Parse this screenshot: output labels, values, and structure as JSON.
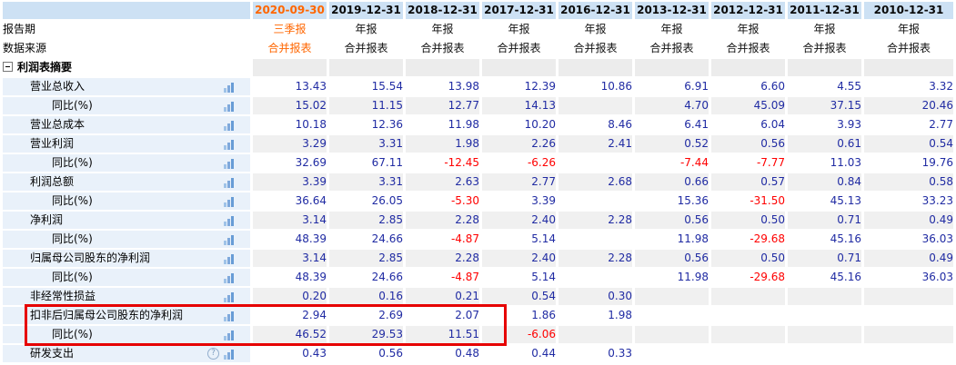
{
  "table": {
    "corner": {
      "report_period_label": "报告期",
      "data_source_label": "数据来源"
    },
    "section": {
      "label": "利润表摘要",
      "collapse_icon": "minus-box"
    },
    "icons": {
      "help_glyph": "?",
      "bar_chart_icon": "bar-chart-icon",
      "help_icon": "help-icon",
      "collapse_icon": "collapse-icon"
    },
    "columns": [
      {
        "date": "2020-09-30",
        "period": "三季报",
        "source": "合并报表",
        "highlight": true
      },
      {
        "date": "2019-12-31",
        "period": "年报",
        "source": "合并报表",
        "highlight": false
      },
      {
        "date": "2018-12-31",
        "period": "年报",
        "source": "合并报表",
        "highlight": false
      },
      {
        "date": "2017-12-31",
        "period": "年报",
        "source": "合并报表",
        "highlight": false
      },
      {
        "date": "2016-12-31",
        "period": "年报",
        "source": "合并报表",
        "highlight": false
      },
      {
        "date": "2013-12-31",
        "period": "年报",
        "source": "合并报表",
        "highlight": false
      },
      {
        "date": "2012-12-31",
        "period": "年报",
        "source": "合并报表",
        "highlight": false
      },
      {
        "date": "2011-12-31",
        "period": "年报",
        "source": "合并报表",
        "highlight": false
      },
      {
        "date": "2010-12-31",
        "period": "年报",
        "source": "合并报表",
        "highlight": false
      }
    ],
    "rows": [
      {
        "label": "营业总收入",
        "indent": 1,
        "help": false,
        "values": [
          "13.43",
          "15.54",
          "13.98",
          "12.39",
          "10.86",
          "6.91",
          "6.60",
          "4.55",
          "3.32"
        ]
      },
      {
        "label": "同比(%)",
        "indent": 2,
        "help": false,
        "values": [
          "15.02",
          "11.15",
          "12.77",
          "14.13",
          "",
          "4.70",
          "45.09",
          "37.15",
          "20.46"
        ]
      },
      {
        "label": "营业总成本",
        "indent": 1,
        "help": false,
        "values": [
          "10.18",
          "12.36",
          "11.98",
          "10.20",
          "8.46",
          "6.41",
          "6.04",
          "3.93",
          "2.77"
        ]
      },
      {
        "label": "营业利润",
        "indent": 1,
        "help": false,
        "values": [
          "3.29",
          "3.31",
          "1.98",
          "2.26",
          "2.41",
          "0.52",
          "0.56",
          "0.61",
          "0.54"
        ]
      },
      {
        "label": "同比(%)",
        "indent": 2,
        "help": false,
        "values": [
          "32.69",
          "67.11",
          "-12.45",
          "-6.26",
          "",
          "-7.44",
          "-7.77",
          "11.03",
          "19.76"
        ]
      },
      {
        "label": "利润总额",
        "indent": 1,
        "help": false,
        "values": [
          "3.39",
          "3.31",
          "2.63",
          "2.77",
          "2.68",
          "0.66",
          "0.57",
          "0.84",
          "0.58"
        ]
      },
      {
        "label": "同比(%)",
        "indent": 2,
        "help": false,
        "values": [
          "36.64",
          "26.05",
          "-5.30",
          "3.39",
          "",
          "15.36",
          "-31.50",
          "45.13",
          "33.23"
        ]
      },
      {
        "label": "净利润",
        "indent": 1,
        "help": false,
        "values": [
          "3.14",
          "2.85",
          "2.28",
          "2.40",
          "2.28",
          "0.56",
          "0.50",
          "0.71",
          "0.49"
        ]
      },
      {
        "label": "同比(%)",
        "indent": 2,
        "help": false,
        "values": [
          "48.39",
          "24.66",
          "-4.87",
          "5.14",
          "",
          "11.98",
          "-29.68",
          "45.16",
          "36.03"
        ]
      },
      {
        "label": "归属母公司股东的净利润",
        "indent": 1,
        "help": false,
        "values": [
          "3.14",
          "2.85",
          "2.28",
          "2.40",
          "2.28",
          "0.56",
          "0.50",
          "0.71",
          "0.49"
        ]
      },
      {
        "label": "同比(%)",
        "indent": 2,
        "help": false,
        "values": [
          "48.39",
          "24.66",
          "-4.87",
          "5.14",
          "",
          "11.98",
          "-29.68",
          "45.16",
          "36.03"
        ]
      },
      {
        "label": "非经常性损益",
        "indent": 1,
        "help": false,
        "values": [
          "0.20",
          "0.16",
          "0.21",
          "0.54",
          "0.30",
          "",
          "",
          "",
          ""
        ]
      },
      {
        "label": "扣非后归属母公司股东的净利润",
        "indent": 1,
        "help": false,
        "values": [
          "2.94",
          "2.69",
          "2.07",
          "1.86",
          "1.98",
          "",
          "",
          "",
          ""
        ]
      },
      {
        "label": "同比(%)",
        "indent": 2,
        "help": false,
        "values": [
          "46.52",
          "29.53",
          "11.51",
          "-6.06",
          "",
          "",
          "",
          "",
          ""
        ]
      },
      {
        "label": "研发支出",
        "indent": 1,
        "help": true,
        "values": [
          "0.43",
          "0.56",
          "0.48",
          "0.44",
          "0.33",
          "",
          "",
          "",
          ""
        ]
      }
    ],
    "colors": {
      "header_bg": "#cde1f4",
      "label_bg": "#e9f1fa",
      "stripe_gray": "#f0f0f0",
      "section_gray": "#ececec",
      "value_navy": "#202ba3",
      "negative_red": "#ff0000",
      "highlight_orange": "#ff6600",
      "annotation_red": "#e60000"
    }
  }
}
